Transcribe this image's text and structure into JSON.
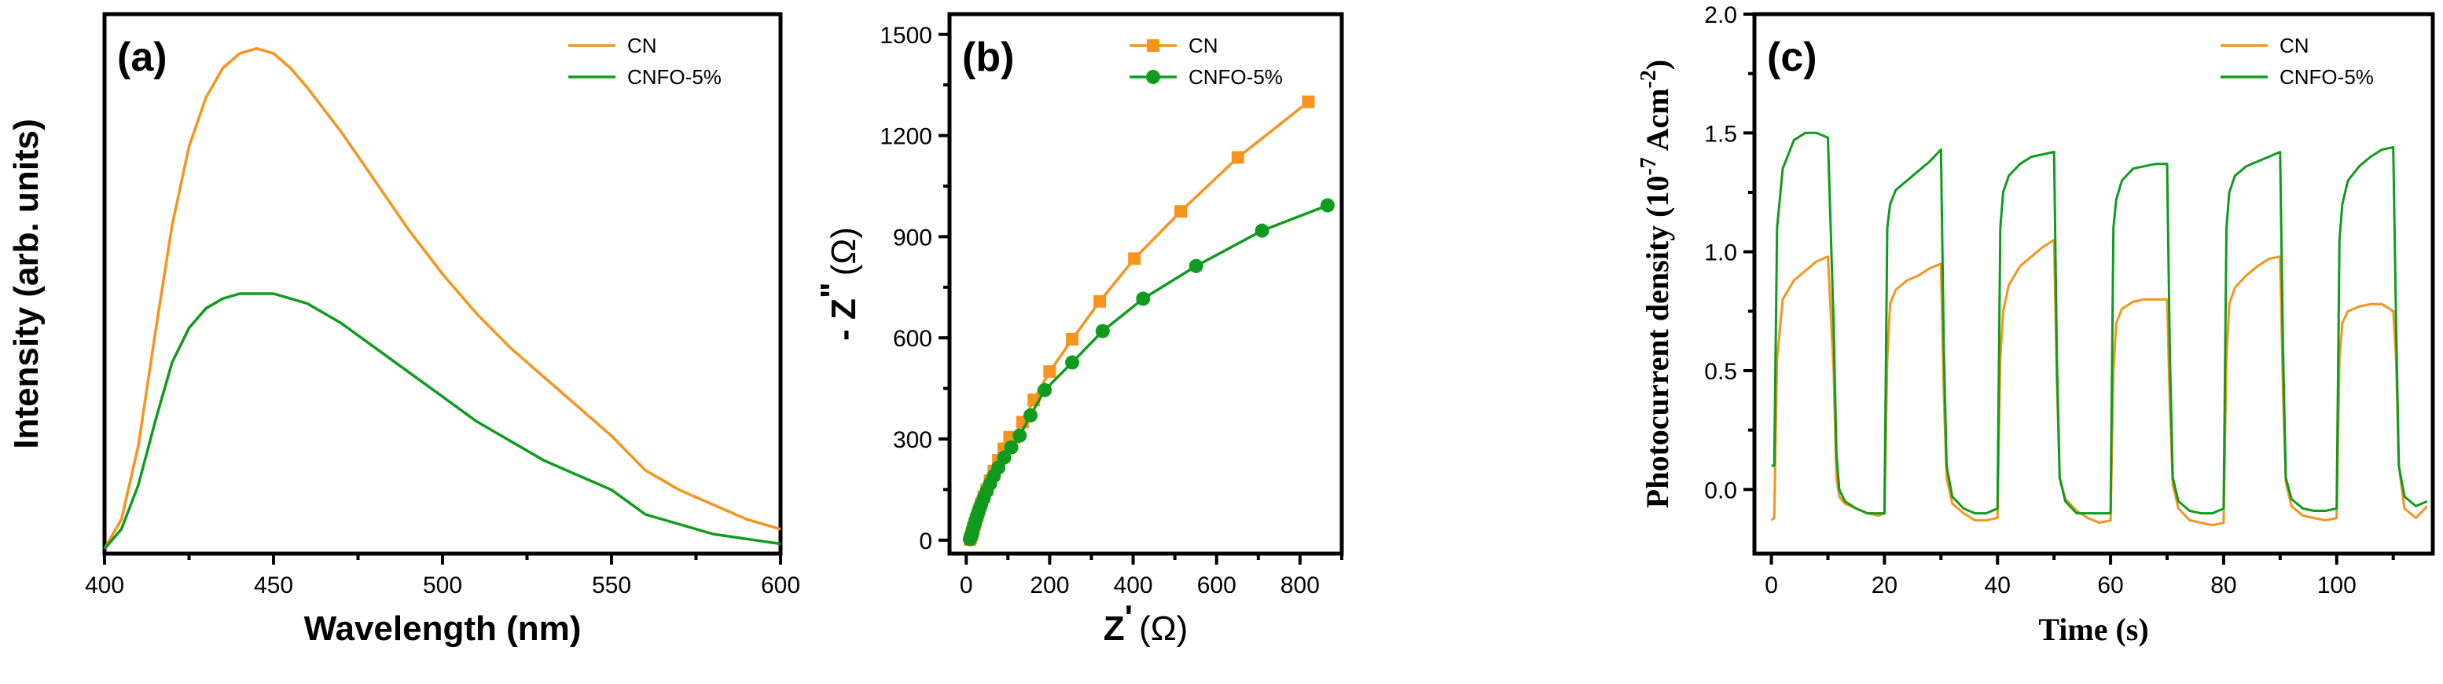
{
  "colors": {
    "cn": "#F7941D",
    "cnfo": "#109B1E",
    "axis": "#000000"
  },
  "chart_data": [
    {
      "type": "line",
      "panel_label": "(a)",
      "title": "",
      "xlabel": "Wavelength (nm)",
      "ylabel": "Intensity (arb. units)",
      "xlim": [
        400,
        600
      ],
      "ylim": [
        0,
        1.1
      ],
      "xticks": [
        400,
        450,
        500,
        550,
        600
      ],
      "xtick_labels": [
        "400",
        "450",
        "500",
        "550",
        "600"
      ],
      "legend_position": "top-right",
      "series": [
        {
          "name": "CN",
          "color": "#F7941D",
          "x": [
            400,
            405,
            410,
            415,
            420,
            425,
            430,
            435,
            440,
            445,
            450,
            455,
            460,
            470,
            480,
            490,
            500,
            510,
            520,
            530,
            540,
            550,
            560,
            570,
            580,
            590,
            600
          ],
          "y": [
            0.01,
            0.07,
            0.22,
            0.45,
            0.67,
            0.83,
            0.93,
            0.99,
            1.02,
            1.03,
            1.02,
            0.99,
            0.95,
            0.86,
            0.76,
            0.66,
            0.57,
            0.49,
            0.42,
            0.36,
            0.3,
            0.24,
            0.17,
            0.13,
            0.1,
            0.07,
            0.05
          ]
        },
        {
          "name": "CNFO-5%",
          "color": "#109B1E",
          "x": [
            400,
            405,
            410,
            415,
            420,
            425,
            430,
            435,
            440,
            445,
            450,
            455,
            460,
            470,
            480,
            490,
            500,
            510,
            520,
            530,
            540,
            550,
            560,
            570,
            580,
            590,
            600
          ],
          "y": [
            0.01,
            0.05,
            0.14,
            0.27,
            0.39,
            0.46,
            0.5,
            0.52,
            0.53,
            0.53,
            0.53,
            0.52,
            0.51,
            0.47,
            0.42,
            0.37,
            0.32,
            0.27,
            0.23,
            0.19,
            0.16,
            0.13,
            0.08,
            0.06,
            0.04,
            0.03,
            0.02
          ]
        }
      ]
    },
    {
      "type": "line",
      "panel_label": "(b)",
      "title": "",
      "xlabel_main": "Z",
      "xlabel_prime": "'",
      "xlabel_unit": "(Ω)",
      "ylabel_main": "- Z",
      "ylabel_prime": "\"",
      "ylabel_unit": "(Ω)",
      "xlim": [
        -40,
        900
      ],
      "ylim": [
        -40,
        1560
      ],
      "xticks": [
        0,
        200,
        400,
        600,
        800
      ],
      "xtick_labels": [
        "0",
        "200",
        "400",
        "600",
        "800"
      ],
      "yticks": [
        0,
        300,
        600,
        900,
        1200,
        1500
      ],
      "ytick_labels": [
        "0",
        "300",
        "600",
        "900",
        "1200",
        "1500"
      ],
      "legend_position": "top-right",
      "series": [
        {
          "name": "CN",
          "color": "#F7941D",
          "marker": "square",
          "x": [
            9,
            11,
            13,
            15,
            17,
            20,
            23,
            27,
            31,
            36,
            42,
            49,
            57,
            66,
            77,
            90,
            104,
            115,
            135,
            162,
            200,
            254,
            320,
            403,
            514,
            651,
            820
          ],
          "y": [
            2,
            8,
            16,
            25,
            35,
            47,
            60,
            74,
            90,
            108,
            128,
            150,
            176,
            205,
            237,
            271,
            305,
            305,
            350,
            416,
            500,
            596,
            708,
            835,
            975,
            1135,
            1300
          ]
        },
        {
          "name": "CNFO-5%",
          "color": "#109B1E",
          "marker": "circle",
          "x": [
            9,
            11,
            13,
            15,
            17,
            20,
            23,
            27,
            31,
            36,
            42,
            49,
            57,
            66,
            77,
            91,
            108,
            128,
            154,
            188,
            254,
            327,
            424,
            551,
            709,
            866
          ],
          "y": [
            3,
            9,
            16,
            25,
            35,
            47,
            60,
            75,
            90,
            107,
            125,
            145,
            167,
            190,
            215,
            245,
            275,
            310,
            370,
            445,
            527,
            620,
            716,
            813,
            918,
            993
          ]
        }
      ]
    },
    {
      "type": "line",
      "panel_label": "(c)",
      "title": "",
      "xlabel": "Time (s)",
      "ylabel_prefix": "Photocurrent density (10",
      "ylabel_exp1": "-7",
      "ylabel_mid": " Acm",
      "ylabel_exp2": "-2",
      "ylabel_suffix": ")",
      "xlim": [
        -3,
        117
      ],
      "ylim": [
        -0.27,
        2.0
      ],
      "xticks": [
        0,
        20,
        40,
        60,
        80,
        100
      ],
      "xtick_labels": [
        "0",
        "20",
        "40",
        "60",
        "80",
        "100"
      ],
      "yticks": [
        0.0,
        0.5,
        1.0,
        1.5,
        2.0
      ],
      "ytick_labels": [
        "0.0",
        "0.5",
        "1.0",
        "1.5",
        "2.0"
      ],
      "legend_position": "top-right",
      "series": [
        {
          "name": "CN",
          "color": "#F7941D",
          "x": [
            0,
            0.5,
            1,
            2,
            4,
            6,
            8,
            10,
            11,
            11.5,
            12,
            13,
            15,
            17,
            19,
            20,
            20.5,
            21,
            22,
            24,
            26,
            28,
            30,
            30.5,
            31,
            32,
            34,
            36,
            38,
            40,
            40.5,
            41,
            42,
            44,
            46,
            48,
            50,
            50.5,
            51,
            52,
            54,
            56,
            58,
            60,
            60.5,
            61,
            62,
            64,
            66,
            68,
            70,
            70.5,
            71,
            72,
            74,
            76,
            78,
            80,
            80.5,
            81,
            82,
            84,
            86,
            88,
            90,
            90.5,
            91,
            92,
            94,
            96,
            98,
            100,
            100.5,
            101,
            102,
            104,
            106,
            108,
            110,
            110.5,
            111,
            112,
            114,
            116
          ],
          "y": [
            -0.13,
            -0.12,
            0.55,
            0.8,
            0.88,
            0.92,
            0.96,
            0.98,
            0.5,
            0.05,
            -0.03,
            -0.06,
            -0.08,
            -0.1,
            -0.11,
            -0.1,
            0.55,
            0.78,
            0.84,
            0.88,
            0.9,
            0.93,
            0.95,
            0.4,
            0.05,
            -0.06,
            -0.1,
            -0.13,
            -0.13,
            -0.12,
            0.55,
            0.75,
            0.86,
            0.94,
            0.98,
            1.02,
            1.05,
            0.45,
            0.05,
            -0.04,
            -0.09,
            -0.12,
            -0.14,
            -0.13,
            0.5,
            0.7,
            0.76,
            0.79,
            0.8,
            0.8,
            0.8,
            0.35,
            0.02,
            -0.08,
            -0.13,
            -0.14,
            -0.15,
            -0.14,
            0.55,
            0.78,
            0.85,
            0.9,
            0.94,
            0.97,
            0.98,
            0.42,
            0.03,
            -0.07,
            -0.11,
            -0.12,
            -0.13,
            -0.12,
            0.55,
            0.7,
            0.75,
            0.77,
            0.78,
            0.78,
            0.75,
            0.55,
            0.1,
            -0.08,
            -0.12,
            -0.07
          ]
        },
        {
          "name": "CNFO-5%",
          "color": "#109B1E",
          "x": [
            0,
            0.5,
            1,
            2,
            4,
            6,
            8,
            10,
            11,
            11.5,
            12,
            13,
            15,
            17,
            19,
            20,
            20.5,
            21,
            22,
            24,
            26,
            28,
            30,
            30.5,
            31,
            32,
            34,
            36,
            38,
            40,
            40.5,
            41,
            42,
            44,
            46,
            48,
            50,
            50.5,
            51,
            52,
            54,
            56,
            58,
            60,
            60.5,
            61,
            62,
            64,
            66,
            68,
            70,
            70.5,
            71,
            72,
            74,
            76,
            78,
            80,
            80.5,
            81,
            82,
            84,
            86,
            88,
            90,
            90.5,
            91,
            92,
            94,
            96,
            98,
            100,
            100.5,
            101,
            102,
            104,
            106,
            108,
            110,
            110.5,
            111,
            112,
            114,
            116
          ],
          "y": [
            0.1,
            0.1,
            1.1,
            1.35,
            1.47,
            1.5,
            1.5,
            1.48,
            0.7,
            0.15,
            0.0,
            -0.05,
            -0.08,
            -0.1,
            -0.1,
            -0.1,
            1.1,
            1.2,
            1.26,
            1.3,
            1.34,
            1.38,
            1.43,
            0.6,
            0.1,
            -0.03,
            -0.08,
            -0.1,
            -0.1,
            -0.08,
            1.1,
            1.25,
            1.32,
            1.37,
            1.4,
            1.41,
            1.42,
            0.55,
            0.05,
            -0.05,
            -0.1,
            -0.1,
            -0.1,
            -0.1,
            1.1,
            1.22,
            1.3,
            1.35,
            1.36,
            1.37,
            1.37,
            0.55,
            0.05,
            -0.05,
            -0.09,
            -0.1,
            -0.1,
            -0.08,
            1.1,
            1.25,
            1.32,
            1.36,
            1.38,
            1.4,
            1.42,
            0.6,
            0.05,
            -0.04,
            -0.08,
            -0.09,
            -0.09,
            -0.08,
            1.05,
            1.2,
            1.3,
            1.36,
            1.4,
            1.43,
            1.44,
            0.7,
            0.1,
            -0.03,
            -0.07,
            -0.05
          ]
        }
      ]
    }
  ]
}
